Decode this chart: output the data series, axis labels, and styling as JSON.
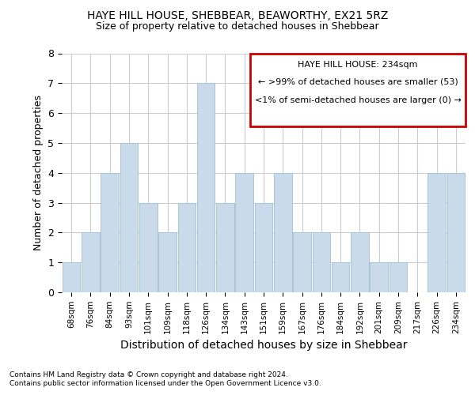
{
  "title": "HAYE HILL HOUSE, SHEBBEAR, BEAWORTHY, EX21 5RZ",
  "subtitle": "Size of property relative to detached houses in Shebbear",
  "xlabel": "Distribution of detached houses by size in Shebbear",
  "ylabel": "Number of detached properties",
  "categories": [
    "68sqm",
    "76sqm",
    "84sqm",
    "93sqm",
    "101sqm",
    "109sqm",
    "118sqm",
    "126sqm",
    "134sqm",
    "143sqm",
    "151sqm",
    "159sqm",
    "167sqm",
    "176sqm",
    "184sqm",
    "192sqm",
    "201sqm",
    "209sqm",
    "217sqm",
    "226sqm",
    "234sqm"
  ],
  "values": [
    1,
    2,
    4,
    5,
    3,
    2,
    3,
    7,
    3,
    4,
    3,
    4,
    2,
    2,
    1,
    2,
    1,
    1,
    0,
    4,
    4
  ],
  "bar_color": "#c9daea",
  "bar_edge_color": "#aac4d8",
  "annotation_box_edge_color": "#cc0000",
  "annotation_title": "HAYE HILL HOUSE: 234sqm",
  "annotation_line1": "← >99% of detached houses are smaller (53)",
  "annotation_line2": "<1% of semi-detached houses are larger (0) →",
  "ylim": [
    0,
    8
  ],
  "yticks": [
    0,
    1,
    2,
    3,
    4,
    5,
    6,
    7,
    8
  ],
  "footer1": "Contains HM Land Registry data © Crown copyright and database right 2024.",
  "footer2": "Contains public sector information licensed under the Open Government Licence v3.0.",
  "background_color": "#ffffff",
  "grid_color": "#cccccc"
}
